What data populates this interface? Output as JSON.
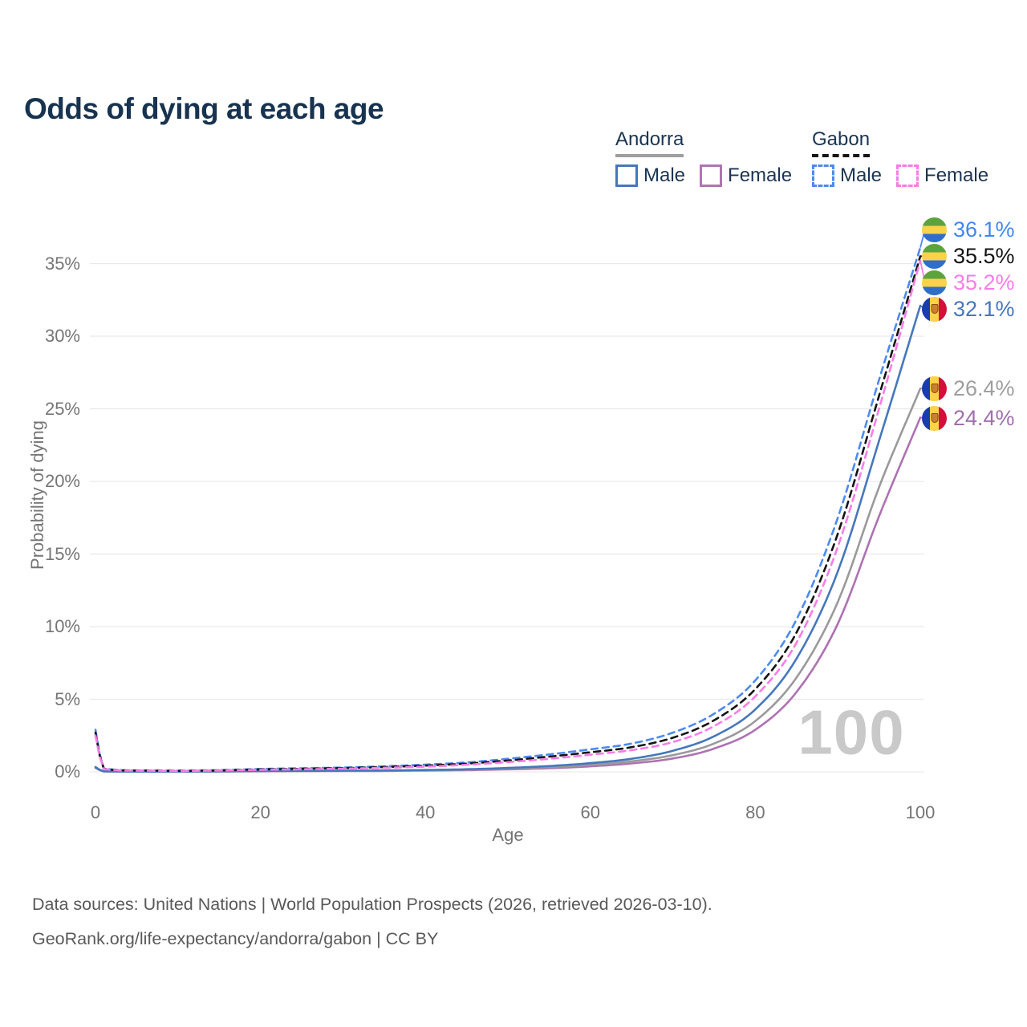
{
  "title": "Odds of dying at each age",
  "legend": {
    "groups": [
      {
        "label": "Andorra",
        "line_style": "solid",
        "line_color": "#9e9e9e",
        "items": [
          {
            "label": "Male",
            "swatch_color": "#4677bd",
            "swatch_style": "solid"
          },
          {
            "label": "Female",
            "swatch_color": "#b273b2",
            "swatch_style": "solid"
          }
        ]
      },
      {
        "label": "Gabon",
        "line_style": "dashed",
        "line_color": "#141414",
        "items": [
          {
            "label": "Male",
            "swatch_color": "#4d8af0",
            "swatch_style": "dashed"
          },
          {
            "label": "Female",
            "swatch_color": "#f97ce8",
            "swatch_style": "dashed"
          }
        ]
      }
    ]
  },
  "chart_data": {
    "type": "line",
    "title": "Odds of dying at each age",
    "xlabel": "Age",
    "ylabel": "Probability of dying",
    "unit": "%",
    "xlim": [
      0,
      100
    ],
    "ylim": [
      0,
      37.5
    ],
    "grid": true,
    "legend_position": "top-right",
    "watermark": "100",
    "x": [
      0,
      1,
      5,
      10,
      15,
      20,
      25,
      30,
      35,
      40,
      45,
      50,
      55,
      60,
      65,
      70,
      75,
      80,
      85,
      90,
      95,
      100
    ],
    "xticks": [
      {
        "value": 0,
        "label": "0"
      },
      {
        "value": 20,
        "label": "20"
      },
      {
        "value": 40,
        "label": "40"
      },
      {
        "value": 60,
        "label": "60"
      },
      {
        "value": 80,
        "label": "80"
      },
      {
        "value": 100,
        "label": "100"
      }
    ],
    "yticks": [
      {
        "value": 0,
        "label": "0%"
      },
      {
        "value": 5,
        "label": "5%"
      },
      {
        "value": 10,
        "label": "10%"
      },
      {
        "value": 15,
        "label": "15%"
      },
      {
        "value": 20,
        "label": "20%"
      },
      {
        "value": 25,
        "label": "25%"
      },
      {
        "value": 30,
        "label": "30%"
      },
      {
        "value": 35,
        "label": "35%"
      }
    ],
    "series": [
      {
        "name": "Gabon — Male",
        "country": "Gabon",
        "sex": "male",
        "style": "dashed",
        "color": "#4d8af0",
        "flag": "gabon-flag-icon",
        "end_label": "36.1%",
        "end_label_color": "#4186f0",
        "values": [
          2.9,
          0.25,
          0.1,
          0.08,
          0.12,
          0.2,
          0.25,
          0.3,
          0.38,
          0.5,
          0.65,
          0.9,
          1.2,
          1.55,
          1.95,
          2.7,
          4.0,
          6.3,
          10.5,
          17.5,
          27.0,
          36.1
        ]
      },
      {
        "name": "Gabon — Both sexes",
        "country": "Gabon",
        "sex": "both",
        "style": "dashed",
        "color": "#141414",
        "flag": "gabon-flag-icon",
        "end_label": "35.5%",
        "end_label_color": "#141414",
        "values": [
          2.7,
          0.22,
          0.09,
          0.07,
          0.1,
          0.17,
          0.21,
          0.26,
          0.33,
          0.43,
          0.57,
          0.78,
          1.05,
          1.35,
          1.7,
          2.35,
          3.55,
          5.7,
          9.6,
          16.4,
          25.9,
          35.5
        ]
      },
      {
        "name": "Gabon — Female",
        "country": "Gabon",
        "sex": "female",
        "style": "dashed",
        "color": "#f97ce8",
        "flag": "gabon-flag-icon",
        "end_label": "35.2%",
        "end_label_color": "#f97ce8",
        "values": [
          2.5,
          0.2,
          0.08,
          0.06,
          0.09,
          0.14,
          0.18,
          0.22,
          0.28,
          0.36,
          0.49,
          0.67,
          0.9,
          1.18,
          1.5,
          2.05,
          3.15,
          5.2,
          8.9,
          15.5,
          25.0,
          35.2
        ]
      },
      {
        "name": "Andorra — Male",
        "country": "Andorra",
        "sex": "male",
        "style": "solid",
        "color": "#4677bd",
        "flag": "andorra-flag-icon",
        "end_label": "32.1%",
        "end_label_color": "#4677bd",
        "values": [
          0.33,
          0.04,
          0.02,
          0.02,
          0.04,
          0.06,
          0.07,
          0.08,
          0.1,
          0.13,
          0.18,
          0.27,
          0.4,
          0.6,
          0.9,
          1.45,
          2.45,
          4.3,
          7.8,
          13.8,
          22.8,
          32.1
        ]
      },
      {
        "name": "Andorra — Both sexes",
        "country": "Andorra",
        "sex": "both",
        "style": "solid",
        "color": "#9a9a9a",
        "flag": "andorra-flag-icon",
        "end_label": "26.4%",
        "end_label_color": "#9e9e9e",
        "values": [
          0.3,
          0.035,
          0.018,
          0.015,
          0.03,
          0.05,
          0.06,
          0.07,
          0.08,
          0.11,
          0.15,
          0.22,
          0.32,
          0.48,
          0.73,
          1.15,
          1.95,
          3.5,
          6.5,
          11.7,
          19.6,
          26.4
        ]
      },
      {
        "name": "Andorra — Female",
        "country": "Andorra",
        "sex": "female",
        "style": "solid",
        "color": "#ad72b2",
        "flag": "andorra-flag-icon",
        "end_label": "24.4%",
        "end_label_color": "#a06fae",
        "values": [
          0.27,
          0.03,
          0.015,
          0.012,
          0.02,
          0.04,
          0.05,
          0.055,
          0.065,
          0.09,
          0.12,
          0.17,
          0.25,
          0.38,
          0.58,
          0.92,
          1.6,
          2.9,
          5.5,
          10.2,
          17.6,
          24.4
        ]
      }
    ]
  },
  "footer": {
    "line1": "Data sources: United Nations | World Population Prospects (2026, retrieved 2026-03-10).",
    "line2": "GeoRank.org/life-expectancy/andorra/gabon | CC BY"
  }
}
